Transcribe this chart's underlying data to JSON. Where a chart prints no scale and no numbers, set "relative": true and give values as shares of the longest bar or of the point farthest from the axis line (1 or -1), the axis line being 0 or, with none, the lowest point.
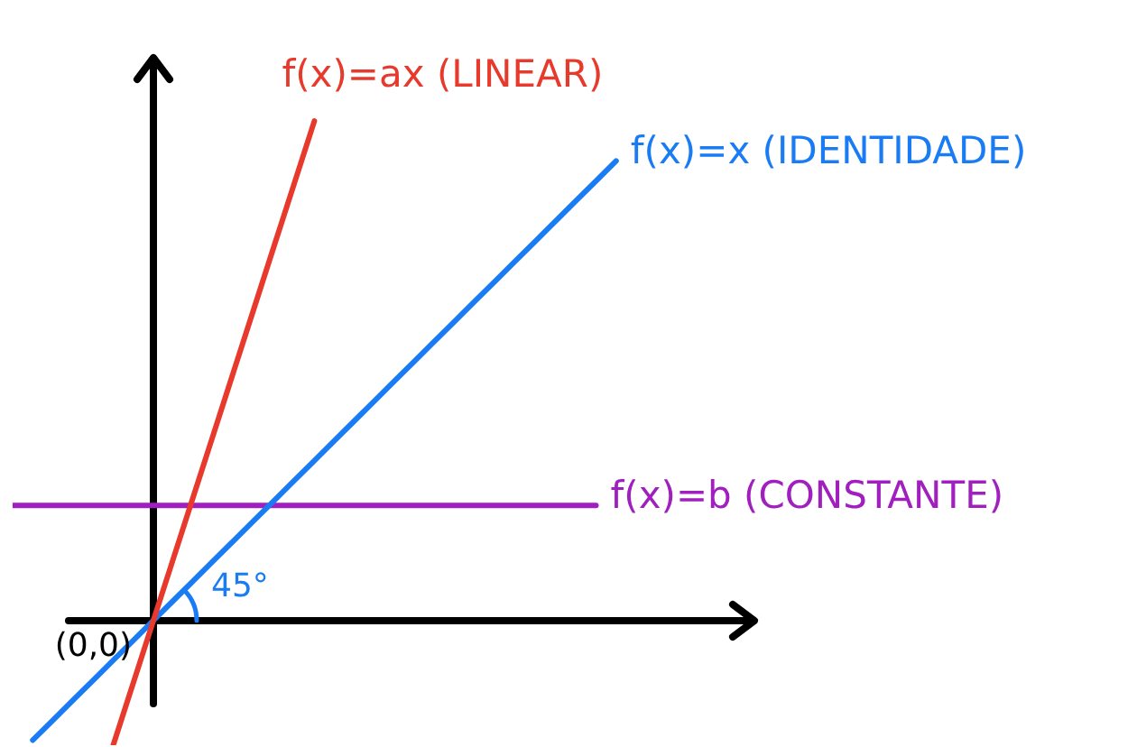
{
  "chart_data": {
    "type": "line",
    "relative": true,
    "legend": false,
    "marker": "none",
    "line_style": "solid",
    "categories": [
      null,
      null,
      null,
      null,
      null,
      null,
      null,
      null,
      null,
      null,
      null,
      null,
      null,
      null,
      null,
      null,
      null,
      null,
      null,
      null,
      null,
      null,
      null,
      null,
      null,
      null,
      null,
      null,
      null,
      null,
      null
    ],
    "series": [
      {
        "name": "f(x)=ax (LINEAR)",
        "color": "#e83a2c",
        "values": [
          null,
          null,
          null,
          null,
          null,
          -0.25,
          -0.125,
          0,
          0.125,
          0.25,
          0.375,
          0.5,
          0.625,
          0.75,
          0.875,
          1,
          null,
          null,
          null,
          null,
          null,
          null,
          null,
          null,
          null,
          null,
          null,
          null,
          null,
          null,
          null
        ]
      },
      {
        "name": "f(x)=x (IDENTIDADE)",
        "color": "#1a7cf4",
        "values": [
          null,
          -0.24,
          -0.2,
          -0.16,
          -0.12,
          -0.08,
          -0.04,
          0,
          0.04,
          0.08,
          0.12,
          0.16,
          0.2,
          0.24,
          0.28,
          0.32,
          0.36,
          0.4,
          0.44,
          0.48,
          0.52,
          0.56,
          0.6,
          0.64,
          0.68,
          0.72,
          0.76,
          0.8,
          0.84,
          0.88,
          0.92
        ]
      },
      {
        "name": "f(x)=b (CONSTANTE)",
        "color": "#a11fbf",
        "values": [
          0.23,
          0.23,
          0.23,
          0.23,
          0.23,
          0.23,
          0.23,
          0.23,
          0.23,
          0.23,
          0.23,
          0.23,
          0.23,
          0.23,
          0.23,
          0.23,
          0.23,
          0.23,
          0.23,
          0.23,
          0.23,
          0.23,
          0.23,
          0.23,
          0.23,
          0.23,
          0.23,
          0.23,
          0.23,
          0.23,
          null
        ]
      }
    ],
    "annotations": [
      "(0,0)",
      "45°"
    ]
  }
}
